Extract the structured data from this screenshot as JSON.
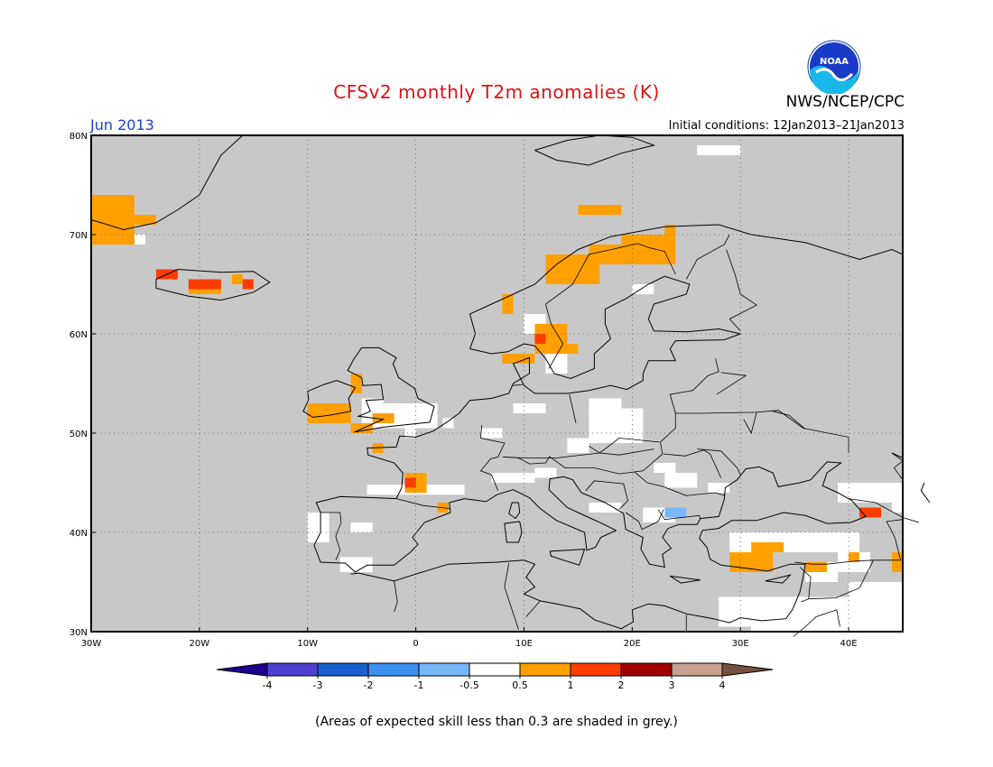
{
  "title": "CFSv2 monthly T2m anomalies (K)",
  "agency": "NWS/NCEP/CPC",
  "logo_text": "NOAA",
  "month_label": "Jun 2013",
  "initial_conditions": "Initial conditions: 12Jan2013–21Jan2013",
  "footnote": "(Areas of expected skill less than 0.3 are shaded in grey.)",
  "map": {
    "lon_range": [
      -30,
      45
    ],
    "lat_range": [
      30,
      80
    ],
    "background_color": "#c8c8c8",
    "grid": "dotted",
    "lon_ticks": [
      "30W",
      "20W",
      "10W",
      "0",
      "10E",
      "20E",
      "30E",
      "40E"
    ],
    "lat_ticks": [
      "30N",
      "40N",
      "50N",
      "60N",
      "70N",
      "80N"
    ]
  },
  "colorbar": {
    "labels": [
      "-4",
      "-3",
      "-2",
      "-1",
      "-0.5",
      "0.5",
      "1",
      "2",
      "3",
      "4"
    ],
    "colors": [
      "#1e0090",
      "#5040d0",
      "#1a60d0",
      "#3c90f0",
      "#78b8f8",
      "#ffffff",
      "#ffa000",
      "#ff3c00",
      "#a00000",
      "#c8a090",
      "#785040"
    ]
  },
  "anomaly_colors": {
    "white": "#ffffff",
    "orange": "#ffa000",
    "red": "#ff3c00",
    "lightblue": "#78b8f8"
  }
}
